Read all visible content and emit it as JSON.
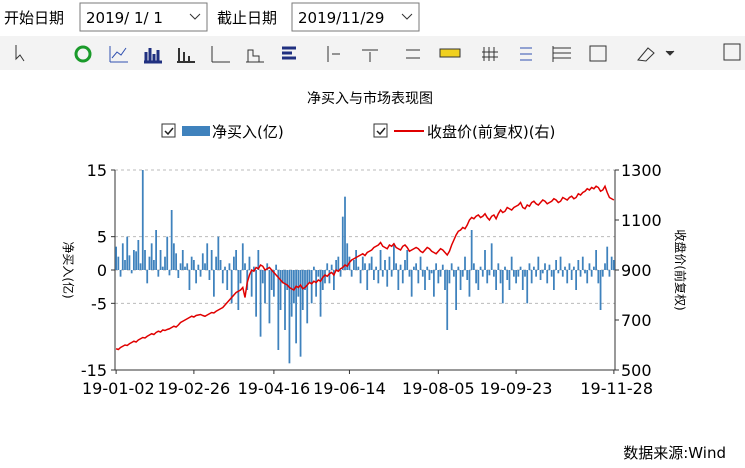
{
  "ui": {
    "start_label": "开始日期",
    "start_date": "2019/ 1/ 1",
    "end_label": "截止日期",
    "end_date": "2019/11/29",
    "source": "数据来源:Wind"
  },
  "chart_data": {
    "type": "combo",
    "title": "净买入与市场表现图",
    "y_label": "净买入(亿)",
    "y2_label": "收盘价(前复权)",
    "categories": [
      "19-01-02",
      null,
      null,
      null,
      null,
      null,
      null,
      null,
      null,
      null,
      null,
      null,
      null,
      null,
      null,
      null,
      null,
      null,
      null,
      null,
      null,
      null,
      null,
      null,
      null,
      null,
      null,
      null,
      null,
      null,
      null,
      null,
      null,
      null,
      null,
      "19-02-26",
      null,
      null,
      null,
      null,
      null,
      null,
      null,
      null,
      null,
      null,
      null,
      null,
      null,
      null,
      null,
      null,
      null,
      null,
      null,
      null,
      null,
      null,
      null,
      null,
      null,
      null,
      null,
      null,
      null,
      null,
      null,
      null,
      null,
      null,
      null,
      "19-04-16",
      null,
      null,
      null,
      null,
      null,
      null,
      null,
      null,
      null,
      null,
      null,
      null,
      null,
      null,
      null,
      null,
      null,
      null,
      null,
      null,
      null,
      null,
      null,
      null,
      null,
      null,
      null,
      null,
      null,
      null,
      null,
      null,
      null,
      "19-06-14",
      null,
      null,
      null,
      null,
      null,
      null,
      null,
      null,
      null,
      null,
      null,
      null,
      null,
      null,
      null,
      null,
      null,
      null,
      null,
      null,
      null,
      null,
      null,
      null,
      null,
      null,
      null,
      null,
      null,
      null,
      null,
      null,
      null,
      null,
      null,
      null,
      null,
      null,
      null,
      "19-08-05",
      null,
      null,
      null,
      null,
      null,
      null,
      null,
      null,
      null,
      null,
      null,
      null,
      null,
      null,
      null,
      null,
      null,
      null,
      null,
      null,
      null,
      null,
      null,
      null,
      null,
      null,
      null,
      null,
      null,
      null,
      null,
      null,
      null,
      null,
      "19-09-23",
      null,
      null,
      null,
      null,
      null,
      null,
      null,
      null,
      null,
      null,
      null,
      null,
      null,
      null,
      null,
      null,
      null,
      null,
      null,
      null,
      null,
      null,
      null,
      null,
      null,
      null,
      null,
      null,
      null,
      null,
      null,
      null,
      null,
      null,
      null,
      null,
      null,
      null,
      null,
      null,
      null,
      null,
      null,
      "19-11-28"
    ],
    "series": [
      {
        "name": "净买入(亿)",
        "type": "bar",
        "color": "#3f82bd",
        "values": [
          3.5,
          2,
          -1,
          4,
          1.5,
          5,
          2.2,
          -0.5,
          3,
          2.8,
          4.5,
          1,
          15,
          3,
          -2,
          2,
          4,
          1.5,
          6,
          -1,
          3,
          0.5,
          2,
          5,
          -0.8,
          9,
          4,
          2.5,
          -1.2,
          1,
          3,
          0.5,
          1,
          -3,
          2,
          1.5,
          -2,
          0.8,
          -1,
          2.5,
          1,
          4,
          -1.5,
          3,
          -4,
          2,
          5,
          1.5,
          -2,
          0.5,
          -3,
          1,
          -5,
          2,
          3,
          -6,
          -2,
          4,
          1,
          -3,
          2,
          -4,
          0.5,
          -7,
          3,
          -10,
          -2,
          -5,
          1,
          -8,
          -3,
          -4,
          0.8,
          -12,
          -6,
          -2,
          -9,
          -3,
          -14,
          -7,
          -5,
          -11,
          -4,
          -13,
          -6,
          -3,
          -8,
          -2,
          -5,
          0.5,
          -4,
          -1,
          -7,
          -3,
          -2,
          1,
          -2,
          0.8,
          -3,
          1.5,
          2,
          -1,
          8,
          11,
          4,
          2,
          -1,
          1.5,
          3,
          0.5,
          -2,
          2,
          1,
          -3,
          1,
          2,
          -1.5,
          0.5,
          -2,
          3,
          -1,
          1.5,
          -2.5,
          2,
          -1,
          4,
          1,
          -3,
          0.8,
          -2,
          1.5,
          3,
          -1,
          -4,
          0.5,
          1,
          -2,
          2,
          -1,
          -3,
          0.5,
          -1.5,
          -0.5,
          -4,
          1,
          -2,
          -1,
          0.8,
          -3,
          -9,
          -2,
          1,
          -1,
          -6,
          0.5,
          -3,
          -1,
          2,
          -1.5,
          -4,
          6,
          1,
          -2,
          -3,
          0.5,
          -1,
          3,
          -2,
          -0.8,
          4,
          -1,
          -3,
          1,
          -2,
          -5,
          0.5,
          -1.5,
          -3,
          2,
          -1,
          -2,
          -1,
          0.5,
          -3,
          -1,
          -5,
          1,
          -2,
          0.5,
          -1,
          2,
          -1.5,
          -0.5,
          1,
          -2,
          0.8,
          -1,
          -3,
          1.5,
          -0.5,
          2,
          -1,
          0.5,
          -2,
          1,
          -1.5,
          0.5,
          -3,
          1.5,
          -1,
          2,
          -0.5,
          -2,
          1,
          -1,
          0.5,
          3,
          -2,
          -6,
          -1,
          1,
          3.5,
          -1,
          2,
          1.5
        ]
      },
      {
        "name": "收盘价(前复权)(右)",
        "type": "line",
        "axis": "y2",
        "color": "#e00000",
        "values": [
          585,
          582,
          590,
          595,
          600,
          598,
          605,
          610,
          615,
          612,
          620,
          625,
          630,
          628,
          635,
          640,
          645,
          642,
          650,
          655,
          652,
          660,
          658,
          662,
          665,
          670,
          675,
          672,
          680,
          690,
          695,
          700,
          705,
          710,
          715,
          712,
          718,
          720,
          722,
          718,
          715,
          720,
          725,
          730,
          728,
          735,
          740,
          745,
          750,
          760,
          770,
          780,
          790,
          800,
          810,
          815,
          820,
          830,
          790,
          850,
          880,
          900,
          895,
          910,
          905,
          920,
          915,
          900,
          905,
          910,
          900,
          890,
          880,
          870,
          860,
          850,
          845,
          840,
          830,
          825,
          820,
          835,
          830,
          840,
          825,
          830,
          840,
          850,
          845,
          855,
          850,
          860,
          855,
          870,
          880,
          875,
          885,
          890,
          880,
          900,
          895,
          905,
          910,
          920,
          915,
          930,
          940,
          945,
          950,
          955,
          960,
          965,
          958,
          970,
          975,
          980,
          990,
          995,
          1000,
          1010,
          995,
          990,
          985,
          1000,
          995,
          1005,
          990,
          985,
          980,
          995,
          1000,
          990,
          975,
          980,
          985,
          990,
          985,
          975,
          970,
          980,
          990,
          985,
          975,
          970,
          965,
          975,
          985,
          980,
          970,
          960,
          975,
          1000,
          1020,
          1040,
          1055,
          1060,
          1070,
          1065,
          1080,
          1100,
          1110,
          1105,
          1115,
          1120,
          1110,
          1115,
          1125,
          1110,
          1100,
          1115,
          1120,
          1105,
          1125,
          1140,
          1130,
          1135,
          1150,
          1145,
          1140,
          1150,
          1155,
          1160,
          1170,
          1150,
          1145,
          1160,
          1155,
          1170,
          1175,
          1165,
          1160,
          1170,
          1180,
          1175,
          1165,
          1170,
          1175,
          1185,
          1180,
          1170,
          1175,
          1190,
          1185,
          1180,
          1190,
          1195,
          1185,
          1190,
          1205,
          1200,
          1210,
          1215,
          1225,
          1220,
          1230,
          1225,
          1235,
          1230,
          1215,
          1220,
          1235,
          1210,
          1190,
          1185,
          1180
        ]
      }
    ],
    "ylim": [
      -15,
      15
    ],
    "yticks": [
      -15,
      -5,
      0,
      5,
      15
    ],
    "y2lim": [
      500,
      1300
    ],
    "y2ticks": [
      500,
      700,
      900,
      1100,
      1300
    ],
    "grid": true
  }
}
